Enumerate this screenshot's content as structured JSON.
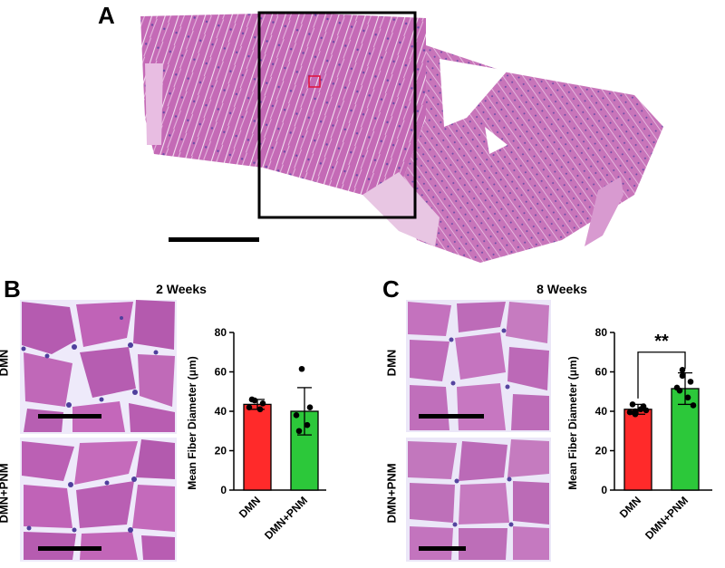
{
  "figure": {
    "panels": {
      "a": {
        "letter": "A"
      },
      "b": {
        "letter": "B",
        "title": "2 Weeks",
        "rows": [
          "DMN",
          "DMN+PNM"
        ]
      },
      "c": {
        "letter": "C",
        "title": "8 Weeks",
        "rows": [
          "DMN",
          "DMN+PNM"
        ],
        "significance": "**"
      }
    },
    "colors": {
      "tissue_pink": "#c86fb8",
      "tissue_light": "#e6b7df",
      "nuclei": "#5a4aa8",
      "bar_dmn": "#ff2a2a",
      "bar_dmn_pnm": "#2cc83a"
    }
  },
  "chart_data": [
    {
      "type": "bar",
      "title": "2 Weeks",
      "categories": [
        "DMN",
        "DMN+PNM"
      ],
      "values": [
        43.5,
        40
      ],
      "errors": [
        2.5,
        12
      ],
      "points": [
        [
          45.5,
          44,
          42,
          41,
          46
        ],
        [
          61.5,
          42,
          38,
          33,
          30
        ]
      ],
      "ylabel": "Mean Fiber Diameter (μm)",
      "ylim": [
        0,
        80
      ],
      "yticks": [
        "0",
        "20",
        "40",
        "60",
        "80"
      ]
    },
    {
      "type": "bar",
      "title": "8 Weeks",
      "categories": [
        "DMN",
        "DMN+PNM"
      ],
      "values": [
        41,
        51.5
      ],
      "errors": [
        2.5,
        8
      ],
      "points": [
        [
          40,
          42.5,
          39.5,
          41,
          43.5,
          40.5,
          38.5
        ],
        [
          61,
          55,
          52,
          47,
          50.5,
          43,
          58
        ]
      ],
      "ylabel": "Mean Fiber Diameter (μm)",
      "ylim": [
        0,
        80
      ],
      "yticks": [
        "0",
        "20",
        "40",
        "60",
        "80"
      ],
      "annotation": "**"
    }
  ]
}
